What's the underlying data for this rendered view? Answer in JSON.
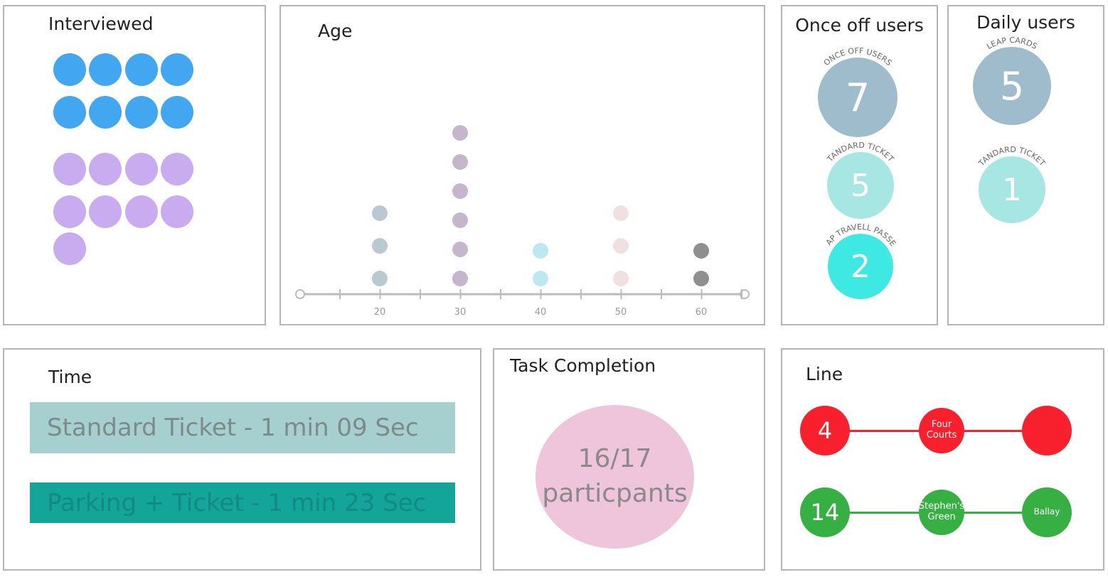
{
  "interviewed": {
    "title": "Interviewed",
    "groups": [
      {
        "count": 8,
        "color": "#42a6f0"
      },
      {
        "count": 9,
        "color": "#c9acef"
      }
    ]
  },
  "age": {
    "title": "Age",
    "axis_color": "#bcbcbc",
    "chart_data": {
      "type": "scatter",
      "title": "Age",
      "x_ticks": [
        "20",
        "30",
        "40",
        "50",
        "60"
      ],
      "xlim": [
        10,
        65
      ],
      "columns": [
        {
          "x": 20,
          "count": 3,
          "color": "#b9c9d2"
        },
        {
          "x": 30,
          "count": 6,
          "color": "#c6b6cd"
        },
        {
          "x": 40,
          "count": 2,
          "color": "#bde7f3"
        },
        {
          "x": 50,
          "count": 3,
          "color": "#f2dfe1"
        },
        {
          "x": 60,
          "count": 2,
          "color": "#8f8f8f"
        }
      ]
    }
  },
  "once_off": {
    "title": "Once off users",
    "items": [
      {
        "label": "ONCE OFF USERS",
        "value": "7",
        "color": "#9fbccc"
      },
      {
        "label": "STANDARD TICKETS",
        "value": "5",
        "color": "#a6e6e3"
      },
      {
        "label": "OAP TRAVELL PASSES",
        "value": "2",
        "color": "#3fe9e3"
      }
    ]
  },
  "daily": {
    "title": "Daily users",
    "items": [
      {
        "label": "LEAP CARDS",
        "value": "5",
        "color": "#9fbccc"
      },
      {
        "label": "STANDARD TICKETS",
        "value": "1",
        "color": "#a6e6e3"
      }
    ]
  },
  "time": {
    "title": "Time",
    "bars": [
      {
        "label": "Standard Ticket -  1 min 09 Sec",
        "bg": "#a6d0cf",
        "fg": "#7c8b8a"
      },
      {
        "label": "Parking + Ticket - 1 min 23 Sec",
        "bg": "#13a49a",
        "fg": "#118a82"
      }
    ]
  },
  "task": {
    "title": "Task Completion",
    "value": "16/17",
    "unit": "particpants",
    "color": "#eec5da"
  },
  "line": {
    "title": "Line",
    "routes": [
      {
        "color": "#f8202c",
        "stops": [
          "4",
          "Four\nCourts",
          ""
        ]
      },
      {
        "color": "#36b043",
        "stops": [
          "14",
          "Stephen's\nGreen",
          "Ballay"
        ]
      }
    ]
  }
}
